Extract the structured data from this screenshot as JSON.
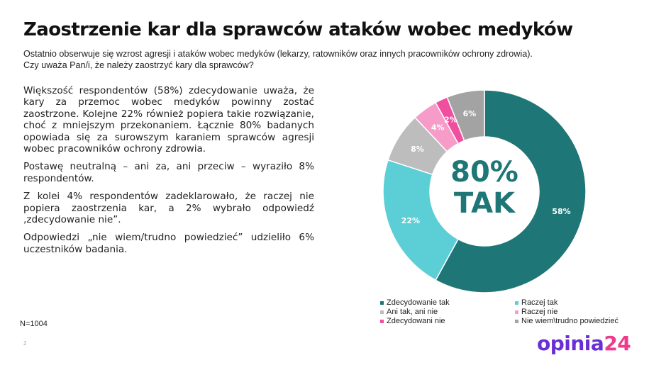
{
  "header": {
    "title": "Zaostrzenie kar dla sprawców ataków wobec medyków",
    "subtitle_line1": "Ostatnio obserwuje się wzrost agresji i ataków wobec medyków (lekarzy, ratowników oraz innych pracowników ochrony zdrowia).",
    "subtitle_line2": "Czy uważa Pan/i, że należy zaostrzyć kary dla sprawców?"
  },
  "body": {
    "paragraphs": [
      "Większość respondentów (58%) zdecydowanie uważa, że kary za przemoc wobec medyków powinny zostać zaostrzone. Kolejne 22% również popiera takie rozwiązanie, choć z mniejszym przekonaniem. Łącznie 80% badanych opowiada się za surowszym karaniem sprawców agresji wobec pracowników ochrony zdrowia.",
      "Postawę neutralną – ani za, ani przeciw – wyraziło 8% respondentów.",
      "Z kolei 4% respondentów zadeklarowało, że raczej nie popiera zaostrzenia kar, a 2% wybrało odpowiedź ‚zdecydowanie nie”.",
      "Odpowiedzi „nie wiem/trudno powiedzieć” udzieliło 6% uczestników badania."
    ]
  },
  "footer": {
    "sample": "N=1004",
    "page_number": "2",
    "logo_part1": "opinia",
    "logo_part2": "24"
  },
  "center_label": {
    "line1": "80%",
    "line2": "TAK"
  },
  "colors": {
    "zdecydowanie_tak": "#1e7776",
    "raczej_tak": "#5ccfd6",
    "ani_tak_ani_nie": "#bdbdbd",
    "raczej_nie": "#f79cc8",
    "zdecydowanie_nie": "#ef4f9e",
    "nie_wiem": "#a3a3a3",
    "logo_purple": "#6a2ed6",
    "logo_pink": "#ef3b8c"
  },
  "chart_data": {
    "type": "pie",
    "subtype": "donut",
    "title": "Zaostrzenie kar dla sprawców ataków wobec medyków",
    "categories": [
      "Zdecydowanie tak",
      "Raczej tak",
      "Ani tak, ani nie",
      "Raczej nie",
      "Zdecydowani nie",
      "Nie wiem\\trudno powiedzieć"
    ],
    "values": [
      58,
      22,
      8,
      4,
      2,
      6
    ],
    "labels": [
      "58%",
      "22%",
      "8%",
      "4%",
      "2%",
      "6%"
    ],
    "colors": [
      "#1e7776",
      "#5ccfd6",
      "#bdbdbd",
      "#f79cc8",
      "#ef4f9e",
      "#a3a3a3"
    ],
    "center_text": "80% TAK",
    "legend_position": "bottom",
    "n": 1004
  },
  "legend": {
    "items": [
      {
        "label": "Zdecydowanie tak",
        "color": "#1e7776"
      },
      {
        "label": "Raczej tak",
        "color": "#5ccfd6"
      },
      {
        "label": "Ani tak, ani nie",
        "color": "#bdbdbd"
      },
      {
        "label": "Raczej nie",
        "color": "#f79cc8"
      },
      {
        "label": "Zdecydowani nie",
        "color": "#ef4f9e"
      },
      {
        "label": "Nie wiem\\trudno powiedzieć",
        "color": "#a3a3a3"
      }
    ]
  }
}
